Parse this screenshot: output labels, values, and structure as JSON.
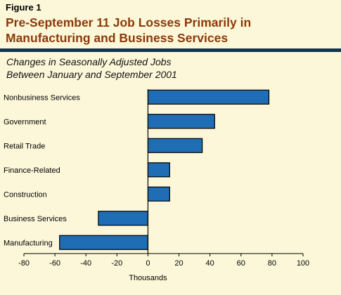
{
  "figure": {
    "label": "Figure 1",
    "title_line1": "Pre-September 11 Job Losses Primarily in",
    "title_line2": "Manufacturing and Business Services"
  },
  "chart_data": {
    "type": "bar",
    "orientation": "horizontal",
    "subtitle_line1": "Changes in Seasonally Adjusted Jobs",
    "subtitle_line2": "Between January and September 2001",
    "categories": [
      "Nonbusiness Services",
      "Government",
      "Retail Trade",
      "Finance-Related",
      "Construction",
      "Business Services",
      "Manufacturing"
    ],
    "values": [
      78,
      43,
      35,
      14,
      14,
      -32,
      -57
    ],
    "xlabel": "Thousands",
    "ylabel": "",
    "xlim": [
      -80,
      100
    ],
    "xticks": [
      -80,
      -60,
      -40,
      -20,
      0,
      20,
      40,
      60,
      80,
      100
    ],
    "grid": false,
    "bar_color": "#1f6db5"
  }
}
